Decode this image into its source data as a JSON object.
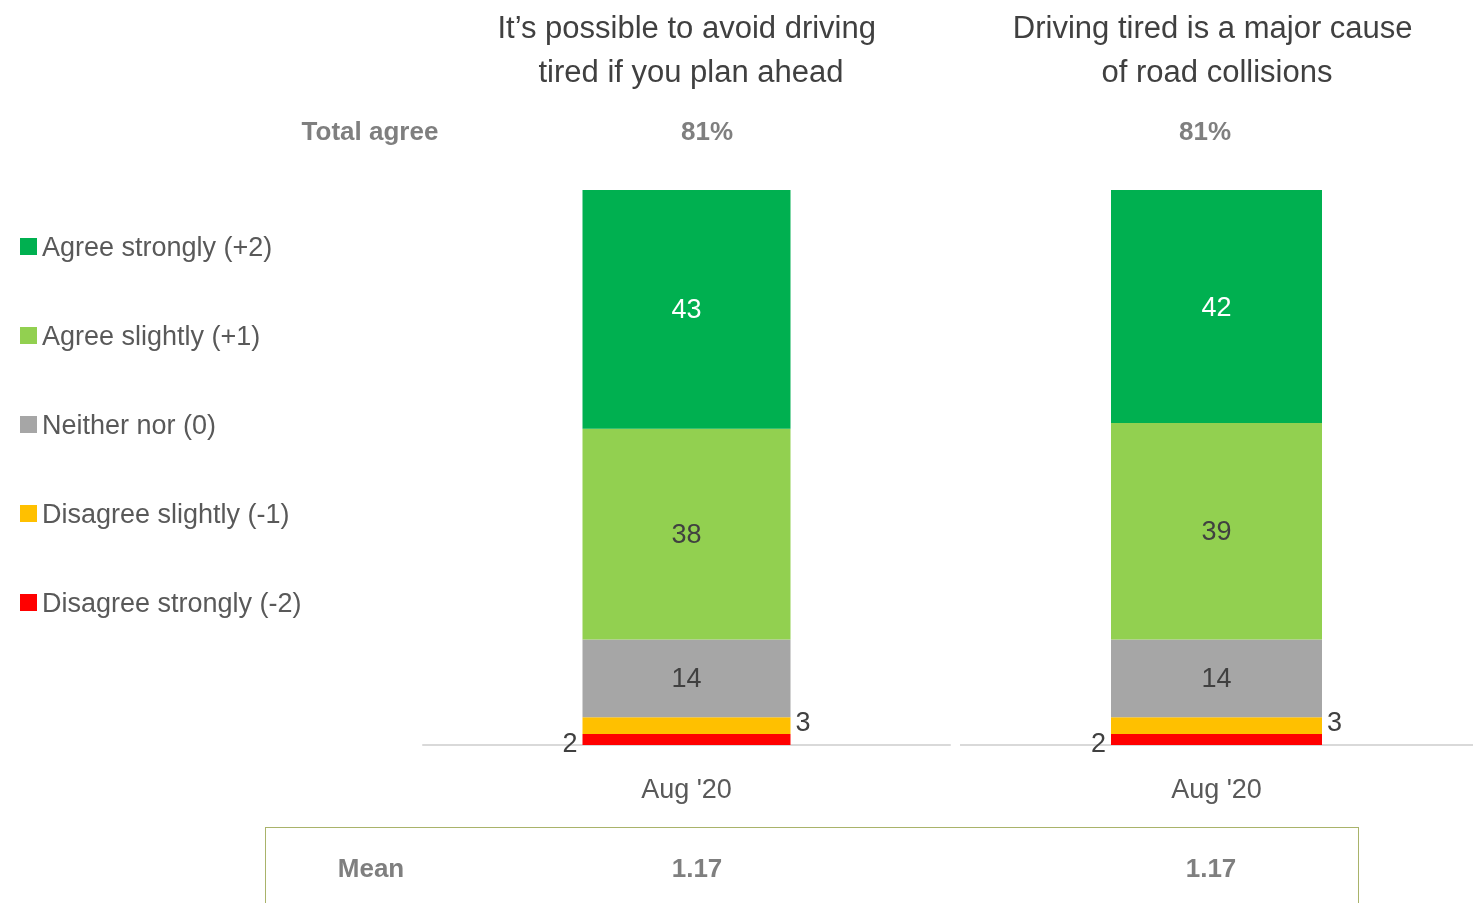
{
  "chart_data": [
    {
      "type": "bar",
      "title": "It’s possible to avoid driving tired if you plan ahead",
      "categories": [
        "Aug '20"
      ],
      "stacked": true,
      "data_labels": true,
      "legend": "left",
      "grid": false,
      "series": [
        {
          "name": "Disagree strongly (-2)",
          "color": "#ff0000",
          "values": [
            2
          ]
        },
        {
          "name": "Disagree slightly (-1)",
          "color": "#ffc000",
          "values": [
            3
          ]
        },
        {
          "name": "Neither nor (0)",
          "color": "#a6a6a6",
          "values": [
            14
          ]
        },
        {
          "name": "Agree slightly (+1)",
          "color": "#92d050",
          "values": [
            38
          ]
        },
        {
          "name": "Agree strongly (+2)",
          "color": "#00b050",
          "values": [
            43
          ]
        }
      ],
      "annotations": [
        "Total agree",
        "81%",
        "Mean",
        "1.17"
      ]
    },
    {
      "type": "bar",
      "title": "Driving tired is a major cause of road collisions",
      "categories": [
        "Aug '20"
      ],
      "stacked": true,
      "data_labels": true,
      "legend": false,
      "grid": false,
      "series": [
        {
          "color": "#ff0000",
          "values": [
            2
          ]
        },
        {
          "color": "#ffc000",
          "values": [
            3
          ]
        },
        {
          "color": "#a6a6a6",
          "values": [
            14
          ]
        },
        {
          "color": "#92d050",
          "values": [
            39
          ]
        },
        {
          "color": "#00b050",
          "values": [
            42
          ]
        }
      ],
      "annotations": [
        "81%",
        "1.17"
      ]
    }
  ]
}
